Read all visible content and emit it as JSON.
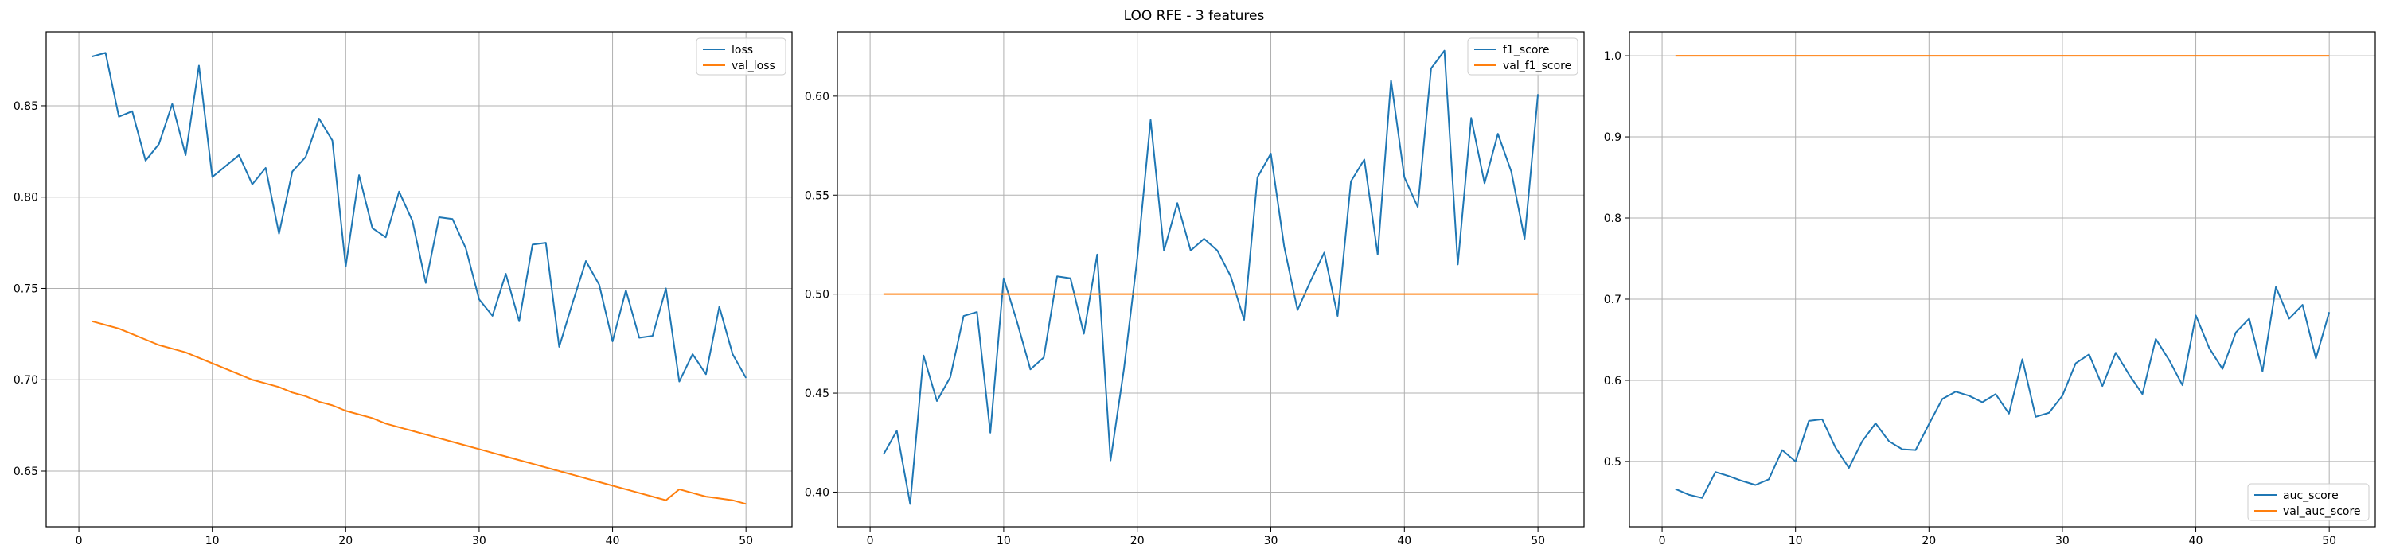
{
  "suptitle": "LOO RFE - 3 features",
  "colors": {
    "series_1": "#1f77b4",
    "series_2": "#ff7f0e",
    "grid": "#b0b0b0",
    "axes": "#000000"
  },
  "chart_data": [
    {
      "type": "line",
      "title": "",
      "xlabel": "",
      "ylabel": "",
      "xlim": [
        -2.45,
        53.45
      ],
      "ylim": [
        0.6195,
        0.8905
      ],
      "xticks": [
        0,
        10,
        20,
        30,
        40,
        50
      ],
      "yticks": [
        0.65,
        0.7,
        0.75,
        0.8,
        0.85
      ],
      "ytick_labels": [
        "0.65",
        "0.70",
        "0.75",
        "0.80",
        "0.85"
      ],
      "grid": true,
      "legend_position": "top-right",
      "x": [
        1,
        2,
        3,
        4,
        5,
        6,
        7,
        8,
        9,
        10,
        11,
        12,
        13,
        14,
        15,
        16,
        17,
        18,
        19,
        20,
        21,
        22,
        23,
        24,
        25,
        26,
        27,
        28,
        29,
        30,
        31,
        32,
        33,
        34,
        35,
        36,
        37,
        38,
        39,
        40,
        41,
        42,
        43,
        44,
        45,
        46,
        47,
        48,
        49,
        50
      ],
      "series": [
        {
          "name": "loss",
          "values": [
            0.877,
            0.879,
            0.844,
            0.847,
            0.82,
            0.829,
            0.851,
            0.823,
            0.872,
            0.811,
            0.817,
            0.823,
            0.807,
            0.816,
            0.78,
            0.814,
            0.822,
            0.843,
            0.831,
            0.762,
            0.812,
            0.783,
            0.778,
            0.803,
            0.787,
            0.753,
            0.789,
            0.788,
            0.772,
            0.744,
            0.735,
            0.758,
            0.732,
            0.774,
            0.775,
            0.718,
            0.742,
            0.765,
            0.752,
            0.721,
            0.749,
            0.723,
            0.724,
            0.75,
            0.699,
            0.714,
            0.703,
            0.74,
            0.714,
            0.701
          ]
        },
        {
          "name": "val_loss",
          "values": [
            0.732,
            0.73,
            0.728,
            0.725,
            0.722,
            0.719,
            0.717,
            0.715,
            0.712,
            0.709,
            0.706,
            0.703,
            0.7,
            0.698,
            0.696,
            0.693,
            0.691,
            0.688,
            0.686,
            0.683,
            0.681,
            0.679,
            0.676,
            0.674,
            0.672,
            0.67,
            0.668,
            0.666,
            0.664,
            0.662,
            0.66,
            0.658,
            0.656,
            0.654,
            0.652,
            0.65,
            0.648,
            0.646,
            0.644,
            0.642,
            0.64,
            0.638,
            0.636,
            0.634,
            0.64,
            0.638,
            0.636,
            0.635,
            0.634,
            0.632
          ]
        }
      ]
    },
    {
      "type": "line",
      "title": "",
      "xlabel": "",
      "ylabel": "",
      "xlim": [
        -2.45,
        53.45
      ],
      "ylim": [
        0.3825,
        0.6325
      ],
      "xticks": [
        0,
        10,
        20,
        30,
        40,
        50
      ],
      "yticks": [
        0.4,
        0.45,
        0.5,
        0.55,
        0.6
      ],
      "ytick_labels": [
        "0.40",
        "0.45",
        "0.50",
        "0.55",
        "0.60"
      ],
      "grid": true,
      "legend_position": "top-right",
      "x": [
        1,
        2,
        3,
        4,
        5,
        6,
        7,
        8,
        9,
        10,
        11,
        12,
        13,
        14,
        15,
        16,
        17,
        18,
        19,
        20,
        21,
        22,
        23,
        24,
        25,
        26,
        27,
        28,
        29,
        30,
        31,
        32,
        33,
        34,
        35,
        36,
        37,
        38,
        39,
        40,
        41,
        42,
        43,
        44,
        45,
        46,
        47,
        48,
        49,
        50
      ],
      "series": [
        {
          "name": "f1_score",
          "values": [
            0.419,
            0.431,
            0.394,
            0.469,
            0.446,
            0.458,
            0.489,
            0.491,
            0.43,
            0.508,
            0.486,
            0.462,
            0.468,
            0.509,
            0.508,
            0.48,
            0.52,
            0.416,
            0.462,
            0.518,
            0.588,
            0.522,
            0.546,
            0.522,
            0.528,
            0.522,
            0.509,
            0.487,
            0.559,
            0.571,
            0.524,
            0.492,
            0.507,
            0.521,
            0.489,
            0.557,
            0.568,
            0.52,
            0.608,
            0.559,
            0.544,
            0.614,
            0.623,
            0.515,
            0.589,
            0.556,
            0.581,
            0.562,
            0.528,
            0.601
          ]
        },
        {
          "name": "val_f1_score",
          "values": [
            0.5,
            0.5,
            0.5,
            0.5,
            0.5,
            0.5,
            0.5,
            0.5,
            0.5,
            0.5,
            0.5,
            0.5,
            0.5,
            0.5,
            0.5,
            0.5,
            0.5,
            0.5,
            0.5,
            0.5,
            0.5,
            0.5,
            0.5,
            0.5,
            0.5,
            0.5,
            0.5,
            0.5,
            0.5,
            0.5,
            0.5,
            0.5,
            0.5,
            0.5,
            0.5,
            0.5,
            0.5,
            0.5,
            0.5,
            0.5,
            0.5,
            0.5,
            0.5,
            0.5,
            0.5,
            0.5,
            0.5,
            0.5,
            0.5,
            0.5
          ]
        }
      ]
    },
    {
      "type": "line",
      "title": "",
      "xlabel": "",
      "ylabel": "",
      "xlim": [
        -2.45,
        53.45
      ],
      "ylim": [
        0.4195,
        1.0295
      ],
      "xticks": [
        0,
        10,
        20,
        30,
        40,
        50
      ],
      "yticks": [
        0.5,
        0.6,
        0.7,
        0.8,
        0.9,
        1.0
      ],
      "ytick_labels": [
        "0.5",
        "0.6",
        "0.7",
        "0.8",
        "0.9",
        "1.0"
      ],
      "grid": true,
      "legend_position": "bottom-right",
      "x": [
        1,
        2,
        3,
        4,
        5,
        6,
        7,
        8,
        9,
        10,
        11,
        12,
        13,
        14,
        15,
        16,
        17,
        18,
        19,
        20,
        21,
        22,
        23,
        24,
        25,
        26,
        27,
        28,
        29,
        30,
        31,
        32,
        33,
        34,
        35,
        36,
        37,
        38,
        39,
        40,
        41,
        42,
        43,
        44,
        45,
        46,
        47,
        48,
        49,
        50
      ],
      "series": [
        {
          "name": "auc_score",
          "values": [
            0.466,
            0.459,
            0.455,
            0.487,
            0.482,
            0.476,
            0.471,
            0.478,
            0.514,
            0.5,
            0.55,
            0.552,
            0.517,
            0.492,
            0.525,
            0.547,
            0.525,
            0.515,
            0.514,
            0.546,
            0.577,
            0.586,
            0.581,
            0.573,
            0.583,
            0.559,
            0.626,
            0.555,
            0.56,
            0.581,
            0.621,
            0.632,
            0.593,
            0.634,
            0.607,
            0.583,
            0.651,
            0.625,
            0.594,
            0.68,
            0.64,
            0.614,
            0.659,
            0.676,
            0.611,
            0.715,
            0.676,
            0.693,
            0.627,
            0.684
          ]
        },
        {
          "name": "val_auc_score",
          "values": [
            1.0,
            1.0,
            1.0,
            1.0,
            1.0,
            1.0,
            1.0,
            1.0,
            1.0,
            1.0,
            1.0,
            1.0,
            1.0,
            1.0,
            1.0,
            1.0,
            1.0,
            1.0,
            1.0,
            1.0,
            1.0,
            1.0,
            1.0,
            1.0,
            1.0,
            1.0,
            1.0,
            1.0,
            1.0,
            1.0,
            1.0,
            1.0,
            1.0,
            1.0,
            1.0,
            1.0,
            1.0,
            1.0,
            1.0,
            1.0,
            1.0,
            1.0,
            1.0,
            1.0,
            1.0,
            1.0,
            1.0,
            1.0,
            1.0,
            1.0
          ]
        }
      ]
    }
  ]
}
